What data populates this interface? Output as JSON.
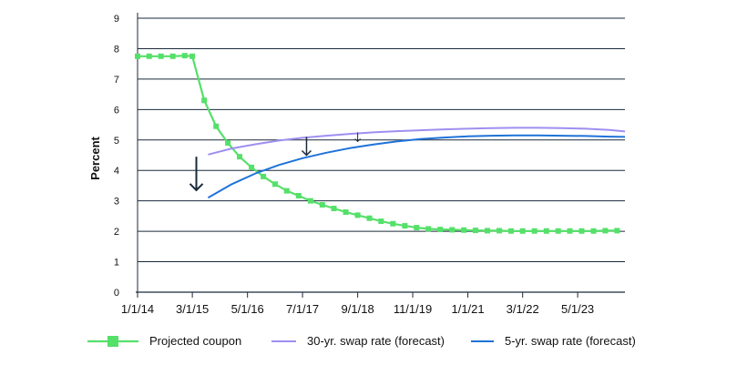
{
  "chart_data": {
    "type": "line",
    "title": "",
    "xlabel": "",
    "ylabel": "Percent",
    "ylim": [
      0,
      9
    ],
    "yticks": [
      "0",
      "1",
      "2",
      "3",
      "4",
      "5",
      "6",
      "7",
      "8",
      "9"
    ],
    "xlim": [
      "2014-01-01",
      "2024-05-01"
    ],
    "xticks": [
      {
        "date": "2014-01-01",
        "label": "1/1/14"
      },
      {
        "date": "2015-03-01",
        "label": "3/1/15"
      },
      {
        "date": "2016-05-01",
        "label": "5/1/16"
      },
      {
        "date": "2017-07-01",
        "label": "7/1/17"
      },
      {
        "date": "2018-09-01",
        "label": "9/1/18"
      },
      {
        "date": "2019-11-01",
        "label": "11/1/19"
      },
      {
        "date": "2021-01-01",
        "label": "1/1/21"
      },
      {
        "date": "2022-03-01",
        "label": "3/1/22"
      },
      {
        "date": "2023-05-01",
        "label": "5/1/23"
      }
    ],
    "grid": "horizontal",
    "legend_position": "bottom",
    "series": [
      {
        "name": "Projected coupon",
        "color": "#55e06a",
        "marker": "square",
        "x": [
          "2014-01-01",
          "2014-04-01",
          "2014-07-01",
          "2014-10-01",
          "2015-01-01",
          "2015-03-01",
          "2015-06-01",
          "2015-09-01",
          "2015-12-01",
          "2016-03-01",
          "2016-06-01",
          "2016-09-01",
          "2016-12-01",
          "2017-03-01",
          "2017-06-01",
          "2017-09-01",
          "2017-12-01",
          "2018-03-01",
          "2018-06-01",
          "2018-09-01",
          "2018-12-01",
          "2019-03-01",
          "2019-06-01",
          "2019-09-01",
          "2019-12-01",
          "2020-03-01",
          "2020-06-01",
          "2020-09-01",
          "2020-12-01",
          "2021-03-01",
          "2021-06-01",
          "2021-09-01",
          "2021-12-01",
          "2022-03-01",
          "2022-06-01",
          "2022-09-01",
          "2022-12-01",
          "2023-03-01",
          "2023-06-01",
          "2023-09-01",
          "2023-12-01",
          "2024-03-01"
        ],
        "values": [
          7.75,
          7.75,
          7.75,
          7.75,
          7.77,
          7.75,
          6.3,
          5.45,
          4.9,
          4.45,
          4.1,
          3.8,
          3.55,
          3.33,
          3.17,
          3.0,
          2.87,
          2.75,
          2.63,
          2.53,
          2.43,
          2.33,
          2.25,
          2.18,
          2.12,
          2.08,
          2.06,
          2.05,
          2.04,
          2.03,
          2.02,
          2.02,
          2.01,
          2.01,
          2.01,
          2.01,
          2.01,
          2.01,
          2.01,
          2.01,
          2.02,
          2.02
        ]
      },
      {
        "name": "30-yr. swap rate (forecast)",
        "color": "#9f8ff0",
        "x": [
          "2015-07-01",
          "2016-01-01",
          "2016-07-01",
          "2017-01-01",
          "2017-07-01",
          "2018-01-01",
          "2018-07-01",
          "2019-01-01",
          "2019-07-01",
          "2020-01-01",
          "2020-07-01",
          "2021-01-01",
          "2021-07-01",
          "2022-01-01",
          "2022-07-01",
          "2023-01-01",
          "2023-07-01",
          "2024-01-01",
          "2024-05-01"
        ],
        "values": [
          4.52,
          4.72,
          4.86,
          4.98,
          5.07,
          5.14,
          5.2,
          5.25,
          5.29,
          5.32,
          5.35,
          5.37,
          5.39,
          5.4,
          5.4,
          5.39,
          5.37,
          5.33,
          5.28
        ]
      },
      {
        "name": "5-yr. swap rate (forecast)",
        "color": "#1f73d8",
        "x": [
          "2015-07-01",
          "2016-01-01",
          "2016-07-01",
          "2017-01-01",
          "2017-07-01",
          "2018-01-01",
          "2018-07-01",
          "2019-01-01",
          "2019-07-01",
          "2020-01-01",
          "2020-07-01",
          "2021-01-01",
          "2021-07-01",
          "2022-01-01",
          "2022-07-01",
          "2023-01-01",
          "2023-07-01",
          "2024-01-01",
          "2024-05-01"
        ],
        "values": [
          3.1,
          3.55,
          3.9,
          4.18,
          4.4,
          4.58,
          4.73,
          4.85,
          4.95,
          5.03,
          5.08,
          5.12,
          5.14,
          5.15,
          5.15,
          5.14,
          5.13,
          5.11,
          5.1
        ]
      }
    ],
    "annotations": [
      {
        "type": "arrow",
        "x": "2015-04-01",
        "y_from": 4.45,
        "y_to": 3.35,
        "size": "large"
      },
      {
        "type": "arrow",
        "x": "2017-08-01",
        "y_from": 5.1,
        "y_to": 4.5,
        "size": "medium"
      },
      {
        "type": "arrow",
        "x": "2018-09-01",
        "y_from": 5.25,
        "y_to": 4.95,
        "size": "small"
      }
    ]
  }
}
